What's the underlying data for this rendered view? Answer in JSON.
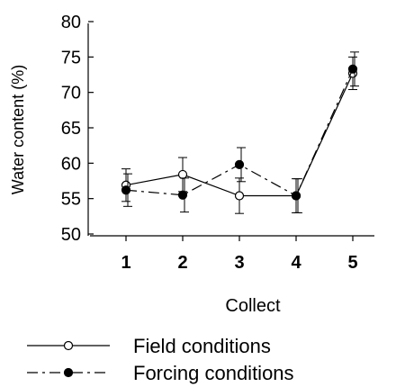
{
  "chart_data": {
    "type": "line",
    "xlabel": "Collect",
    "ylabel": "Water content (%)",
    "categories": [
      "1",
      "2",
      "3",
      "4",
      "5"
    ],
    "ylim": [
      50,
      80
    ],
    "yticks": [
      "50",
      "55",
      "60",
      "65",
      "70",
      "75",
      "80"
    ],
    "grid": false,
    "legend_position": "bottom",
    "series": [
      {
        "name": "Field conditions",
        "values": [
          56.9,
          58.4,
          55.4,
          55.4,
          72.7
        ],
        "errors": [
          2.3,
          2.4,
          2.5,
          2.4,
          2.3
        ],
        "marker": "open-circle",
        "line_style": "solid",
        "color": "#000000"
      },
      {
        "name": "Forcing conditions",
        "values": [
          56.2,
          55.5,
          59.8,
          55.4,
          73.3
        ],
        "errors": [
          2.3,
          2.4,
          2.4,
          2.4,
          2.4
        ],
        "marker": "filled-circle",
        "line_style": "dash-dot",
        "color": "#000000"
      }
    ]
  }
}
